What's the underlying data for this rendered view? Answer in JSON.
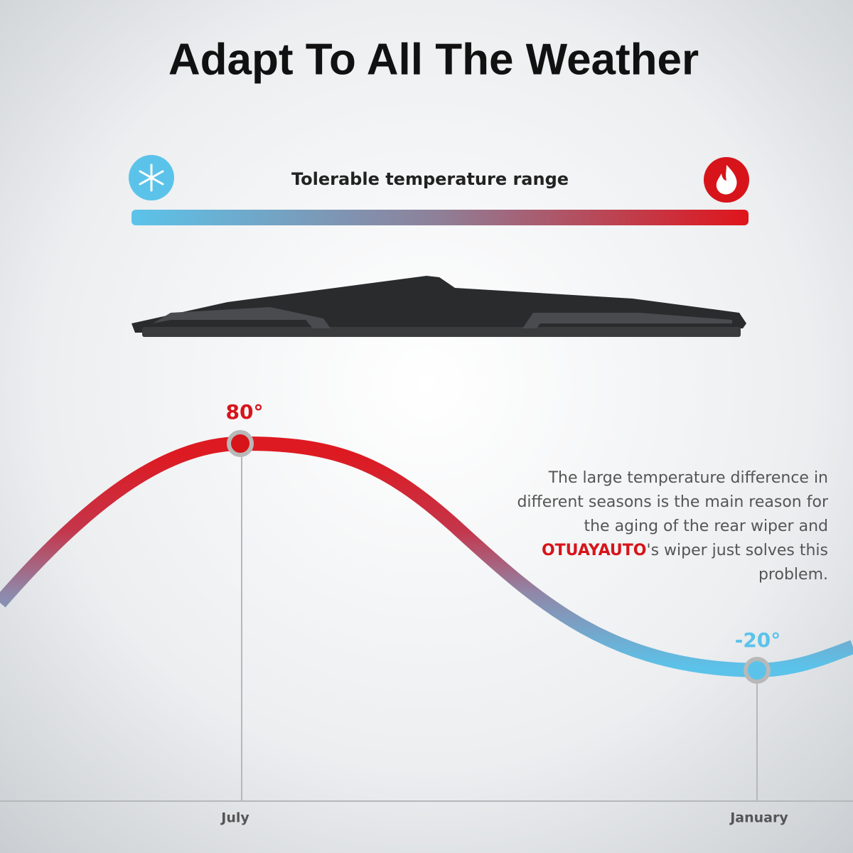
{
  "header": {
    "title": "Adapt To All The Weather"
  },
  "range_bar": {
    "label": "Tolerable temperature range"
  },
  "curve": {
    "peak_label": "80°",
    "trough_label": "-20°",
    "months": [
      "July",
      "January"
    ]
  },
  "description": {
    "parts": [
      "The large temperature difference in different seasons is the main reason for the aging of the rear wiper and ",
      "OTUAYAUTO",
      "'s wiper just solves this problem."
    ]
  }
}
